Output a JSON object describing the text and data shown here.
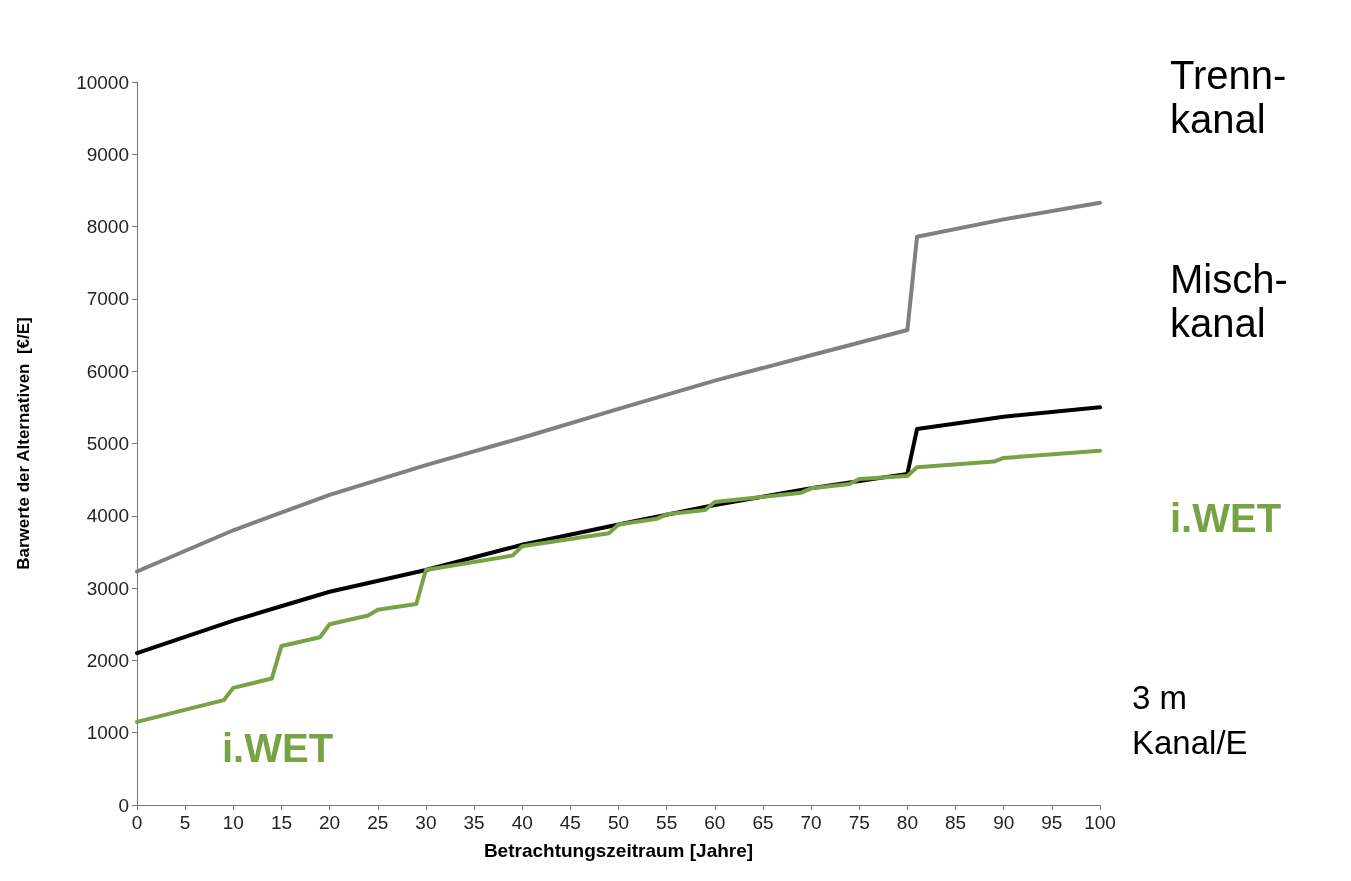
{
  "chart_data": {
    "type": "line",
    "xlabel": "Betrachtungszeitraum [Jahre]",
    "ylabel": "Barwerte der Alternativen  [€/E]",
    "xlim": [
      0,
      100
    ],
    "xticks": [
      0,
      5,
      10,
      15,
      20,
      25,
      30,
      35,
      40,
      45,
      50,
      55,
      60,
      65,
      70,
      75,
      80,
      85,
      90,
      95,
      100
    ],
    "ylim": [
      0,
      10000
    ],
    "yticks": [
      0,
      1000,
      2000,
      3000,
      4000,
      5000,
      6000,
      7000,
      8000,
      9000,
      10000
    ],
    "grid": false,
    "legend": false,
    "marker": "none",
    "line_style": "solid",
    "series": [
      {
        "name": "Trenn-\nkanal",
        "color": "#808080",
        "x": [
          0,
          10,
          20,
          30,
          40,
          50,
          60,
          70,
          80,
          81,
          90,
          100
        ],
        "values": [
          3230,
          3800,
          4290,
          4700,
          5080,
          5480,
          5870,
          6220,
          6570,
          7860,
          8100,
          8330
        ]
      },
      {
        "name": "Misch-\nkanal",
        "color": "#000000",
        "x": [
          0,
          10,
          20,
          30,
          40,
          50,
          60,
          70,
          80,
          81,
          90,
          100
        ],
        "values": [
          2100,
          2550,
          2950,
          3250,
          3600,
          3880,
          4150,
          4380,
          4580,
          5200,
          5370,
          5500
        ]
      },
      {
        "name": "i.WET",
        "color": "#77a345",
        "x": [
          0,
          9,
          10,
          14,
          15,
          19,
          20,
          24,
          25,
          29,
          30,
          39,
          40,
          49,
          50,
          54,
          55,
          59,
          60,
          69,
          70,
          74,
          75,
          80,
          81,
          89,
          90,
          100
        ],
        "values": [
          1150,
          1450,
          1620,
          1750,
          2200,
          2320,
          2500,
          2620,
          2700,
          2780,
          3250,
          3450,
          3580,
          3760,
          3880,
          3960,
          4020,
          4080,
          4190,
          4320,
          4380,
          4440,
          4510,
          4550,
          4670,
          4750,
          4800,
          4900
        ]
      }
    ],
    "annotations": [
      "i.WET",
      "3 m\nKanal/E"
    ]
  }
}
